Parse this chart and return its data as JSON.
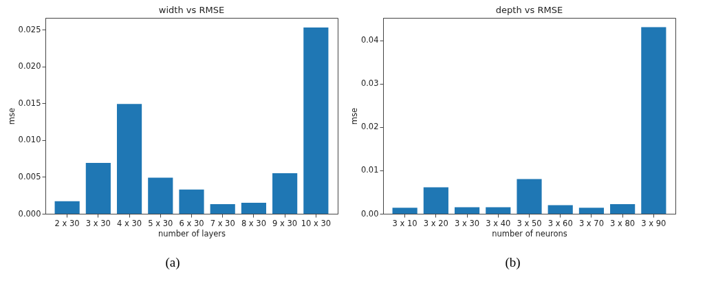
{
  "chart_data": [
    {
      "type": "bar",
      "title": "width vs RMSE",
      "xlabel": "number of layers",
      "ylabel": "mse",
      "categories": [
        "2 x 30",
        "3 x 30",
        "4 x 30",
        "5 x 30",
        "6 x 30",
        "7 x 30",
        "8 x 30",
        "9 x 30",
        "10 x 30"
      ],
      "values": [
        0.0017,
        0.0069,
        0.0149,
        0.0049,
        0.0033,
        0.0013,
        0.0015,
        0.0055,
        0.0253
      ],
      "color": "#1f77b4",
      "ylim": [
        0,
        0.0266
      ],
      "yticks": [
        {
          "value": 0,
          "label": "0.000"
        },
        {
          "value": 0.005,
          "label": "0.005"
        },
        {
          "value": 0.01,
          "label": "0.010"
        },
        {
          "value": 0.015,
          "label": "0.015"
        },
        {
          "value": 0.02,
          "label": "0.020"
        },
        {
          "value": 0.025,
          "label": "0.025"
        }
      ],
      "grid": false,
      "annotations": [
        "(a)"
      ]
    },
    {
      "type": "bar",
      "title": "depth vs RMSE",
      "xlabel": "number of neurons",
      "ylabel": "mse",
      "categories": [
        "3 x 10",
        "3 x 20",
        "3 x 30",
        "3 x 40",
        "3 x 50",
        "3 x 60",
        "3 x 70",
        "3 x 80",
        "3 x 90"
      ],
      "values": [
        0.0014,
        0.0061,
        0.0015,
        0.0015,
        0.008,
        0.002,
        0.0014,
        0.0022,
        0.043
      ],
      "color": "#1f77b4",
      "ylim": [
        0,
        0.04515
      ],
      "yticks": [
        {
          "value": 0,
          "label": "0.00"
        },
        {
          "value": 0.01,
          "label": "0.01"
        },
        {
          "value": 0.02,
          "label": "0.02"
        },
        {
          "value": 0.03,
          "label": "0.03"
        },
        {
          "value": 0.04,
          "label": "0.04"
        }
      ],
      "grid": false,
      "annotations": [
        "(b)"
      ]
    }
  ]
}
